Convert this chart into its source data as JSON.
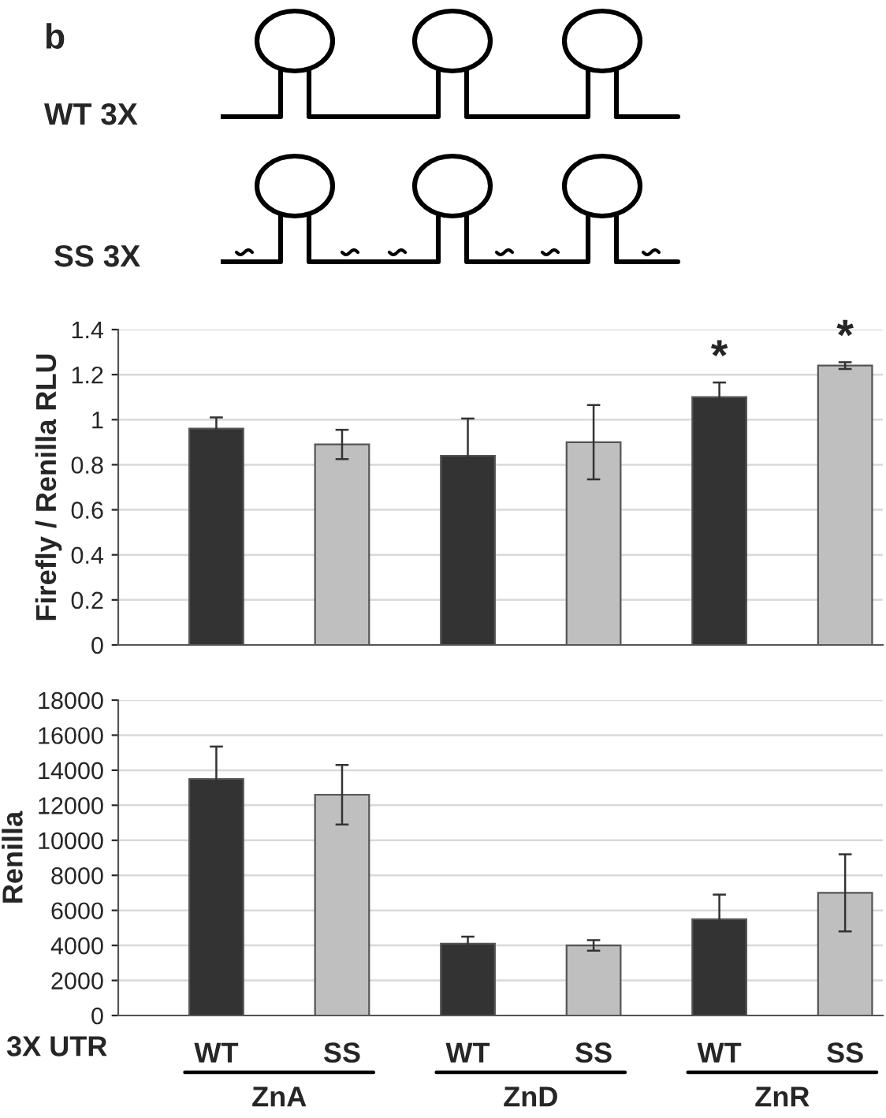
{
  "chart_data": [
    {
      "type": "bar",
      "ylabel": "Firefly / Renilla RLU",
      "categories": [
        null,
        null,
        null,
        null,
        null,
        null
      ],
      "tick_labels": "y",
      "grid": "y",
      "annotations": [
        "b",
        "WT 3X",
        "SS 3X"
      ],
      "series": [
        {
          "values": [
            0.96,
            0.89,
            0.84,
            0.9,
            1.1,
            1.24
          ],
          "colors": [
            "#333333",
            "#bfbfbf",
            "#333333",
            "#bfbfbf",
            "#333333",
            "#bfbfbf"
          ],
          "errors": [
            0.05,
            0.065,
            0.165,
            0.165,
            0.065,
            0.015
          ],
          "value_labels": [
            null,
            null,
            null,
            null,
            "*",
            "*"
          ]
        }
      ],
      "ylim": [
        0,
        1.4
      ],
      "yticks": [
        0,
        0.2,
        0.4,
        0.6,
        0.8,
        1,
        1.2,
        1.4
      ]
    },
    {
      "type": "bar",
      "ylabel": "Renilla",
      "categories": [
        "WT",
        "SS",
        "WT",
        "SS",
        "WT",
        "SS"
      ],
      "grid": "y",
      "annotations": [
        "3X UTR",
        "ZnA",
        "ZnD",
        "ZnR"
      ],
      "series": [
        {
          "values": [
            13500,
            12600,
            4100,
            4000,
            5500,
            7000
          ],
          "colors": [
            "#333333",
            "#bfbfbf",
            "#333333",
            "#bfbfbf",
            "#333333",
            "#bfbfbf"
          ],
          "errors": [
            1850,
            1700,
            400,
            300,
            1400,
            2200
          ]
        }
      ],
      "ylim": [
        0,
        18000
      ],
      "yticks": [
        0,
        2000,
        4000,
        6000,
        8000,
        10000,
        12000,
        14000,
        16000,
        18000
      ]
    }
  ]
}
